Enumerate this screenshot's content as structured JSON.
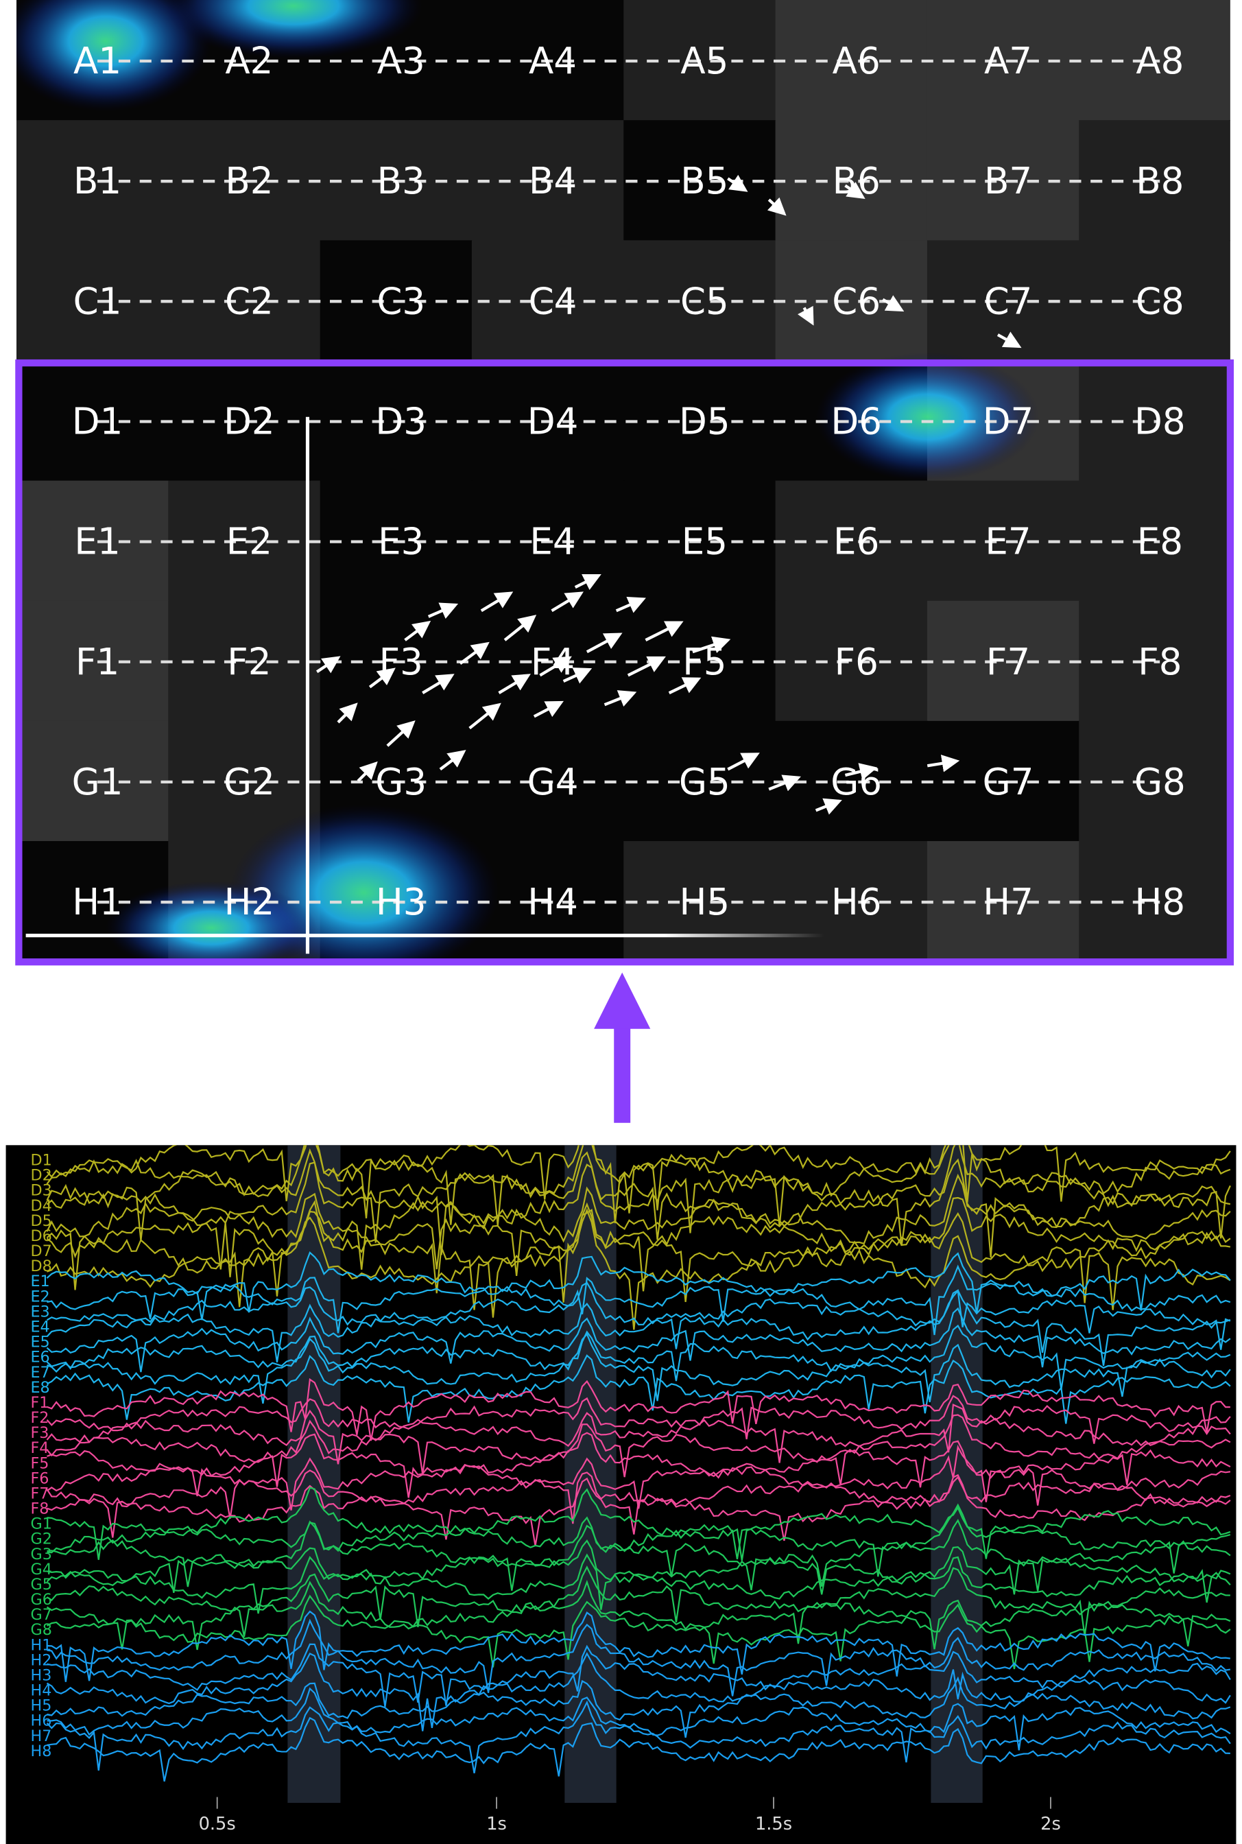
{
  "grid": {
    "rows": [
      [
        "A1",
        "A2",
        "A3",
        "A4",
        "A5",
        "A6",
        "A7",
        "A8"
      ],
      [
        "B1",
        "B2",
        "B3",
        "B4",
        "B5",
        "B6",
        "B7",
        "B8"
      ],
      [
        "C1",
        "C2",
        "C3",
        "C4",
        "C5",
        "C6",
        "C7",
        "C8"
      ],
      [
        "D1",
        "D2",
        "D3",
        "D4",
        "D5",
        "D6",
        "D7",
        "D8"
      ],
      [
        "E1",
        "E2",
        "E3",
        "E4",
        "E5",
        "E6",
        "E7",
        "E8"
      ],
      [
        "F1",
        "F2",
        "F3",
        "F4",
        "F5",
        "F6",
        "F7",
        "F8"
      ],
      [
        "G1",
        "G2",
        "G3",
        "G4",
        "G5",
        "G6",
        "G7",
        "G8"
      ],
      [
        "H1",
        "H2",
        "H3",
        "H4",
        "H5",
        "H6",
        "H7",
        "H8"
      ]
    ]
  },
  "traces": {
    "groups": [
      {
        "color": "#b5b21e",
        "labels": [
          "D1",
          "D2",
          "D3",
          "D4",
          "D5",
          "D6",
          "D7",
          "D8"
        ]
      },
      {
        "color": "#1fb3ec",
        "labels": [
          "E1",
          "E2",
          "E3",
          "E4",
          "E5",
          "E6",
          "E7",
          "E8"
        ]
      },
      {
        "color": "#f04a9a",
        "labels": [
          "F1",
          "F2",
          "F3",
          "F4",
          "F5",
          "F6",
          "F7",
          "F8"
        ]
      },
      {
        "color": "#1fc65a",
        "labels": [
          "G1",
          "G2",
          "G3",
          "G4",
          "G5",
          "G6",
          "G7",
          "G8"
        ]
      },
      {
        "color": "#1a9ef0",
        "labels": [
          "H1",
          "H2",
          "H3",
          "H4",
          "H5",
          "H6",
          "H7",
          "H8"
        ]
      }
    ],
    "time_ticks": [
      "0.5s",
      "1s",
      "1.5s",
      "2s"
    ]
  }
}
